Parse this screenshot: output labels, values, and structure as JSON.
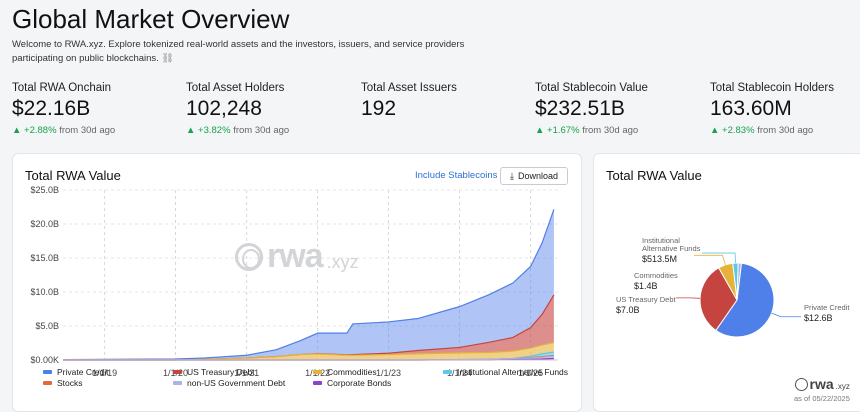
{
  "header": {
    "title": "Global Market Overview",
    "subtitle": "Welcome to RWA.xyz. Explore tokenized real-world assets and the investors, issuers, and service providers participating on public blockchains.",
    "subtitle_icon": "link-icon"
  },
  "stats": [
    {
      "label": "Total RWA Onchain",
      "value": "$22.16B",
      "change": "+2.88%",
      "change_suffix": "from 30d ago"
    },
    {
      "label": "Total Asset Holders",
      "value": "102,248",
      "change": "+3.82%",
      "change_suffix": "from 30d ago"
    },
    {
      "label": "Total Asset Issuers",
      "value": "192",
      "change": "",
      "change_suffix": ""
    },
    {
      "label": "Total Stablecoin Value",
      "value": "$232.51B",
      "change": "+1.67%",
      "change_suffix": "from 30d ago"
    },
    {
      "label": "Total Stablecoin Holders",
      "value": "163.60M",
      "change": "+2.83%",
      "change_suffix": "from 30d ago"
    }
  ],
  "main_card": {
    "title": "Total RWA Value",
    "include_link": "Include Stablecoins",
    "download_label": "Download",
    "watermark_text": "rwa",
    "watermark_sub": ".xyz"
  },
  "side_card": {
    "title": "Total RWA Value",
    "logo_text": "rwa",
    "logo_sub": ".xyz",
    "as_of": "as of 05/22/2025"
  },
  "colors": {
    "private_credit": "#4f7fe8",
    "us_treasury": "#c5443f",
    "commodities": "#e6b33a",
    "institutional": "#5cc7e6",
    "stocks": "#e8663b",
    "non_us_gov": "#aab4e0",
    "corporate_bonds": "#8e44c8",
    "up": "#16a34a"
  },
  "chart_data": [
    {
      "type": "area",
      "stacked": true,
      "x_ticks": [
        "1/1/19",
        "1/1/20",
        "1/1/21",
        "1/1/22",
        "1/1/23",
        "1/1/24",
        "1/1/25"
      ],
      "y_ticks": [
        "$0.00K",
        "$5.0B",
        "$10.0B",
        "$15.0B",
        "$20.0B",
        "$25.0B"
      ],
      "ylim": [
        0,
        25
      ],
      "x": [
        "2018-06",
        "2019-01",
        "2020-01",
        "2020-06",
        "2021-01",
        "2021-06",
        "2021-10",
        "2022-01",
        "2022-06",
        "2022-07",
        "2023-01",
        "2023-06",
        "2024-01",
        "2024-06",
        "2024-10",
        "2025-01",
        "2025-03",
        "2025-05"
      ],
      "series": [
        {
          "name": "Private Credit",
          "color_key": "private_credit",
          "values": [
            0.05,
            0.1,
            0.15,
            0.2,
            0.4,
            1.0,
            2.0,
            3.0,
            3.2,
            4.5,
            4.6,
            4.7,
            6.0,
            7.0,
            8.0,
            9.0,
            10.5,
            12.6
          ]
        },
        {
          "name": "US Treasury Debt",
          "color_key": "us_treasury",
          "values": [
            0,
            0,
            0,
            0,
            0,
            0,
            0,
            0.05,
            0.05,
            0.1,
            0.2,
            0.5,
            0.8,
            1.5,
            2.0,
            3.0,
            4.5,
            7.0
          ]
        },
        {
          "name": "Commodities",
          "color_key": "commodities",
          "values": [
            0,
            0,
            0,
            0.1,
            0.3,
            0.5,
            0.8,
            0.9,
            0.7,
            0.7,
            0.8,
            0.9,
            1.0,
            1.0,
            1.1,
            1.2,
            1.3,
            1.4
          ]
        },
        {
          "name": "Institutional Alternative Funds",
          "color_key": "institutional",
          "values": [
            0,
            0,
            0,
            0,
            0,
            0,
            0,
            0,
            0,
            0,
            0,
            0,
            0,
            0,
            0,
            0.2,
            0.4,
            0.5135
          ]
        },
        {
          "name": "Stocks",
          "color_key": "stocks",
          "values": [
            0,
            0,
            0,
            0,
            0,
            0,
            0,
            0,
            0,
            0,
            0,
            0,
            0,
            0,
            0,
            0.05,
            0.1,
            0.1
          ]
        },
        {
          "name": "non-US Government Debt",
          "color_key": "non_us_gov",
          "values": [
            0,
            0,
            0,
            0,
            0,
            0,
            0,
            0,
            0,
            0,
            0,
            0,
            0.05,
            0.1,
            0.15,
            0.2,
            0.25,
            0.3
          ]
        },
        {
          "name": "Corporate Bonds",
          "color_key": "corporate_bonds",
          "values": [
            0,
            0,
            0,
            0,
            0,
            0,
            0,
            0,
            0,
            0,
            0,
            0,
            0,
            0,
            0.05,
            0.1,
            0.15,
            0.25
          ]
        }
      ],
      "grid": true
    },
    {
      "type": "pie",
      "slices": [
        {
          "label": "Private Credit",
          "value_label": "$12.6B",
          "value": 12.6,
          "color_key": "private_credit"
        },
        {
          "label": "US Treasury Debt",
          "value_label": "$7.0B",
          "value": 7.0,
          "color_key": "us_treasury"
        },
        {
          "label": "Commodities",
          "value_label": "$1.4B",
          "value": 1.4,
          "color_key": "commodities"
        },
        {
          "label": "Institutional Alternative Funds",
          "value_label": "$513.5M",
          "value": 0.5135,
          "color_key": "institutional"
        },
        {
          "label": "",
          "value_label": "",
          "value": 0.3,
          "color_key": "non_us_gov"
        }
      ]
    }
  ]
}
